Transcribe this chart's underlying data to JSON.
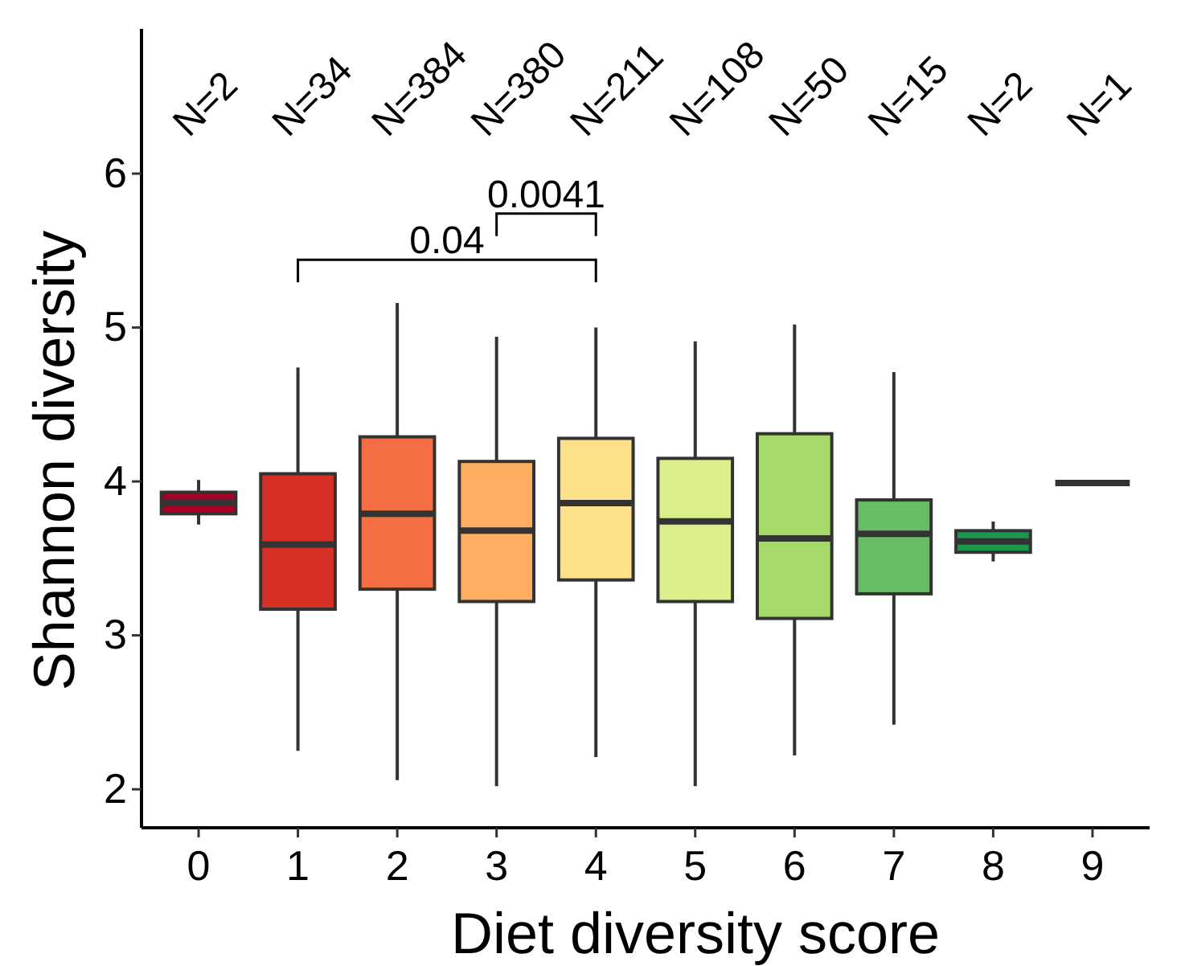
{
  "chart_data": {
    "type": "box",
    "xlabel": "Diet diversity score",
    "ylabel": "Shannon diversity",
    "categories": [
      "0",
      "1",
      "2",
      "3",
      "4",
      "5",
      "6",
      "7",
      "8",
      "9"
    ],
    "colors": [
      "#a50026",
      "#d73027",
      "#f46d43",
      "#fdae61",
      "#fee08b",
      "#d9ef8b",
      "#a6d96a",
      "#66bd63",
      "#1a9850",
      "#333333"
    ],
    "boxes": [
      {
        "low": 3.72,
        "q1": 3.79,
        "median": 3.86,
        "q3": 3.93,
        "high": 4.01
      },
      {
        "low": 2.25,
        "q1": 3.17,
        "median": 3.59,
        "q3": 4.05,
        "high": 4.74
      },
      {
        "low": 2.06,
        "q1": 3.3,
        "median": 3.79,
        "q3": 4.29,
        "high": 5.16
      },
      {
        "low": 2.02,
        "q1": 3.22,
        "median": 3.68,
        "q3": 4.13,
        "high": 4.94
      },
      {
        "low": 2.21,
        "q1": 3.36,
        "median": 3.86,
        "q3": 4.28,
        "high": 5.0
      },
      {
        "low": 2.02,
        "q1": 3.22,
        "median": 3.74,
        "q3": 4.15,
        "high": 4.91
      },
      {
        "low": 2.22,
        "q1": 3.11,
        "median": 3.63,
        "q3": 4.31,
        "high": 5.02
      },
      {
        "low": 2.42,
        "q1": 3.27,
        "median": 3.66,
        "q3": 3.88,
        "high": 4.71
      },
      {
        "low": 3.48,
        "q1": 3.54,
        "median": 3.61,
        "q3": 3.68,
        "high": 3.74
      },
      {
        "low": 3.99,
        "q1": 3.99,
        "median": 3.99,
        "q3": 3.99,
        "high": 3.99
      }
    ],
    "ylim": [
      1.75,
      6.94
    ],
    "yticks": [
      2,
      3,
      4,
      5,
      6
    ],
    "annotations": [
      "N=2",
      "N=34",
      "N=384",
      "N=380",
      "N=211",
      "N=108",
      "N=50",
      "N=15",
      "N=2",
      "N=1",
      "0.04",
      "0.0041"
    ]
  }
}
